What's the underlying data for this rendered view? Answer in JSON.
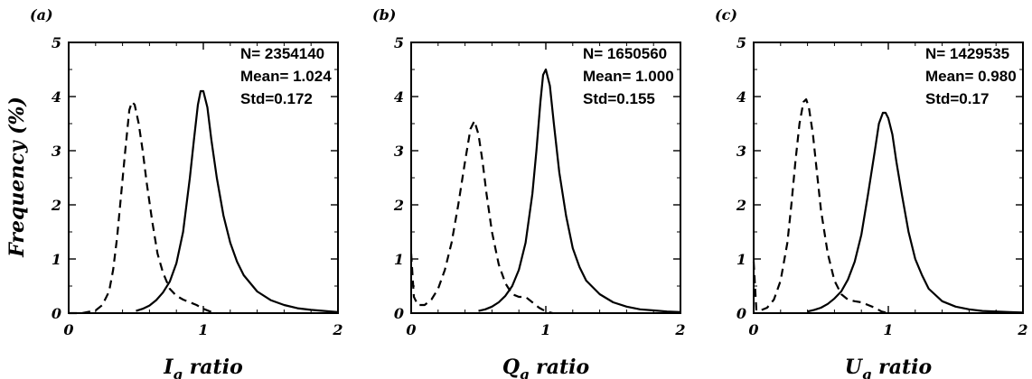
{
  "figure": {
    "ylabel": "Frequency (%)"
  },
  "chart_data": [
    {
      "type": "line",
      "panel_label": "(a)",
      "xlabel": {
        "var": "I",
        "sub": "g",
        "rest": " ratio"
      },
      "xlim": [
        0,
        2
      ],
      "ylim": [
        0,
        5
      ],
      "xticks": [
        "0",
        "1",
        "2"
      ],
      "yticks": [
        "0",
        "1",
        "2",
        "3",
        "4",
        "5"
      ],
      "annotation": [
        "N= 2354140",
        "Mean= 1.024",
        "Std=0.172"
      ],
      "series": [
        {
          "style": "solid",
          "x": [
            0.5,
            0.55,
            0.6,
            0.65,
            0.7,
            0.75,
            0.8,
            0.85,
            0.9,
            0.93,
            0.96,
            0.98,
            1.0,
            1.03,
            1.06,
            1.1,
            1.15,
            1.2,
            1.25,
            1.3,
            1.4,
            1.5,
            1.6,
            1.7,
            1.8,
            1.9,
            2.0
          ],
          "y": [
            0.04,
            0.08,
            0.14,
            0.24,
            0.38,
            0.58,
            0.92,
            1.5,
            2.5,
            3.2,
            3.85,
            4.1,
            4.1,
            3.8,
            3.2,
            2.5,
            1.8,
            1.3,
            0.95,
            0.7,
            0.4,
            0.24,
            0.15,
            0.09,
            0.06,
            0.04,
            0.02
          ]
        },
        {
          "style": "dashed",
          "x": [
            0.0,
            0.1,
            0.2,
            0.25,
            0.3,
            0.33,
            0.36,
            0.39,
            0.42,
            0.45,
            0.47,
            0.49,
            0.52,
            0.55,
            0.58,
            0.62,
            0.66,
            0.7,
            0.75,
            0.8,
            0.85,
            0.9,
            0.95,
            1.0,
            1.05,
            1.1
          ],
          "y": [
            0.0,
            0.0,
            0.05,
            0.15,
            0.4,
            0.8,
            1.4,
            2.2,
            3.0,
            3.75,
            3.9,
            3.85,
            3.5,
            3.0,
            2.4,
            1.7,
            1.1,
            0.75,
            0.45,
            0.32,
            0.25,
            0.2,
            0.15,
            0.08,
            0.03,
            0.0
          ]
        }
      ]
    },
    {
      "type": "line",
      "panel_label": "(b)",
      "xlabel": {
        "var": "Q",
        "sub": "g",
        "rest": " ratio"
      },
      "xlim": [
        0,
        2
      ],
      "ylim": [
        0,
        5
      ],
      "xticks": [
        "0",
        "1",
        "2"
      ],
      "yticks": [
        "0",
        "1",
        "2",
        "3",
        "4",
        "5"
      ],
      "annotation": [
        "N= 1650560",
        "Mean= 1.000",
        "Std=0.155"
      ],
      "series": [
        {
          "style": "solid",
          "x": [
            0.5,
            0.55,
            0.6,
            0.65,
            0.7,
            0.75,
            0.8,
            0.85,
            0.9,
            0.93,
            0.96,
            0.98,
            1.0,
            1.03,
            1.06,
            1.1,
            1.15,
            1.2,
            1.25,
            1.3,
            1.4,
            1.5,
            1.6,
            1.7,
            1.8,
            1.9,
            2.0
          ],
          "y": [
            0.04,
            0.07,
            0.12,
            0.2,
            0.32,
            0.5,
            0.8,
            1.3,
            2.2,
            3.0,
            3.9,
            4.4,
            4.5,
            4.2,
            3.5,
            2.6,
            1.8,
            1.2,
            0.85,
            0.6,
            0.35,
            0.2,
            0.12,
            0.07,
            0.05,
            0.03,
            0.02
          ]
        },
        {
          "style": "dashed",
          "x": [
            0.0,
            0.02,
            0.05,
            0.1,
            0.15,
            0.2,
            0.25,
            0.3,
            0.35,
            0.4,
            0.44,
            0.47,
            0.5,
            0.53,
            0.56,
            0.6,
            0.65,
            0.7,
            0.75,
            0.8,
            0.85,
            0.9,
            0.95,
            1.0,
            1.05
          ],
          "y": [
            1.1,
            0.3,
            0.15,
            0.15,
            0.25,
            0.45,
            0.8,
            1.3,
            2.0,
            2.8,
            3.4,
            3.55,
            3.3,
            2.8,
            2.2,
            1.5,
            0.9,
            0.55,
            0.35,
            0.3,
            0.3,
            0.2,
            0.1,
            0.03,
            0.0
          ]
        }
      ]
    },
    {
      "type": "line",
      "panel_label": "(c)",
      "xlabel": {
        "var": "U",
        "sub": "g",
        "rest": " ratio"
      },
      "xlim": [
        0,
        2
      ],
      "ylim": [
        0,
        5
      ],
      "xticks": [
        "0",
        "1",
        "2"
      ],
      "yticks": [
        "0",
        "1",
        "2",
        "3",
        "4",
        "5"
      ],
      "annotation": [
        "N= 1429535",
        "Mean= 0.980",
        "Std=0.17"
      ],
      "series": [
        {
          "style": "solid",
          "x": [
            0.4,
            0.45,
            0.5,
            0.55,
            0.6,
            0.65,
            0.7,
            0.75,
            0.8,
            0.85,
            0.9,
            0.93,
            0.96,
            0.98,
            1.0,
            1.03,
            1.06,
            1.1,
            1.15,
            1.2,
            1.25,
            1.3,
            1.4,
            1.5,
            1.6,
            1.7,
            1.8,
            1.9,
            2.0
          ],
          "y": [
            0.03,
            0.06,
            0.1,
            0.17,
            0.27,
            0.4,
            0.62,
            0.95,
            1.45,
            2.2,
            3.0,
            3.5,
            3.7,
            3.7,
            3.6,
            3.3,
            2.8,
            2.2,
            1.5,
            1.0,
            0.7,
            0.45,
            0.22,
            0.12,
            0.07,
            0.04,
            0.03,
            0.02,
            0.01
          ]
        },
        {
          "style": "dashed",
          "x": [
            0.0,
            0.02,
            0.05,
            0.1,
            0.15,
            0.2,
            0.25,
            0.28,
            0.31,
            0.34,
            0.37,
            0.39,
            0.41,
            0.44,
            0.47,
            0.5,
            0.55,
            0.6,
            0.65,
            0.7,
            0.75,
            0.8,
            0.85,
            0.9,
            0.95,
            1.0
          ],
          "y": [
            0.95,
            0.05,
            0.05,
            0.1,
            0.25,
            0.6,
            1.3,
            2.0,
            2.8,
            3.5,
            3.9,
            3.95,
            3.8,
            3.3,
            2.6,
            1.9,
            1.1,
            0.6,
            0.35,
            0.25,
            0.22,
            0.2,
            0.15,
            0.1,
            0.03,
            0.0
          ]
        }
      ]
    }
  ]
}
